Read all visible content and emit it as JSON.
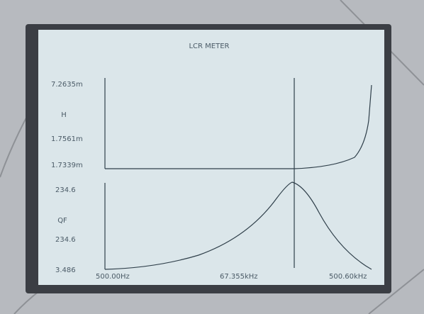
{
  "screen": {
    "title": "LCR METER",
    "upper": {
      "quantity": "H",
      "labels": [
        "7.2635m",
        "1.7561m",
        "1.7339m"
      ]
    },
    "lower": {
      "quantity": "QF",
      "labels": [
        "234.6",
        "234.6",
        "3.486"
      ]
    },
    "x_labels": [
      "500.00Hz",
      "67.355kHz",
      "500.60kHz"
    ]
  }
}
